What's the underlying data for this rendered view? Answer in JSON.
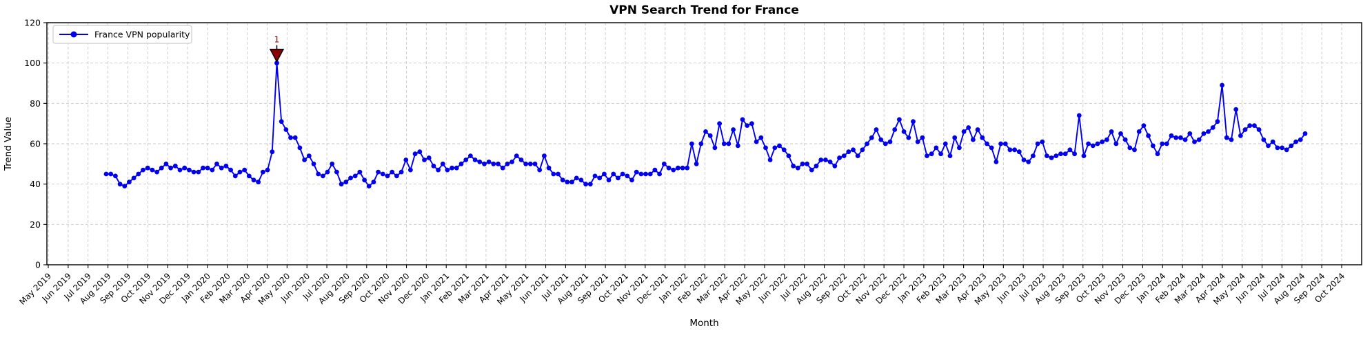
{
  "title": "VPN Search Trend for France",
  "axes": {
    "x_label": "Month",
    "y_label": "Trend Value"
  },
  "legend": {
    "label": "France VPN popularity",
    "position": "upper left"
  },
  "annotation": {
    "label": "1",
    "marker": "triangle-down",
    "color": "#8b0000",
    "at_value": 100
  },
  "colors": {
    "line": "#0000ee",
    "marker": "#0000ee",
    "annotation": "#8b0000",
    "grid": "#c9c9c9",
    "axis": "#000000",
    "background": "#ffffff",
    "legend_border": "#cccccc"
  },
  "chart_data": {
    "type": "line",
    "title": "VPN Search Trend for France",
    "xlabel": "Month",
    "ylabel": "Trend Value",
    "ylim": [
      0,
      120
    ],
    "grid": true,
    "grid_style": "dashed",
    "legend_position": "upper left",
    "y_ticks": [
      0,
      20,
      40,
      60,
      80,
      100,
      120
    ],
    "x_tick_labels": [
      "May 2019",
      "Jun 2019",
      "Jul 2019",
      "Aug 2019",
      "Sep 2019",
      "Oct 2019",
      "Nov 2019",
      "Dec 2019",
      "Jan 2020",
      "Feb 2020",
      "Mar 2020",
      "Apr 2020",
      "May 2020",
      "Jun 2020",
      "Jul 2020",
      "Aug 2020",
      "Sep 2020",
      "Oct 2020",
      "Nov 2020",
      "Dec 2020",
      "Jan 2021",
      "Feb 2021",
      "Mar 2021",
      "Apr 2021",
      "May 2021",
      "Jun 2021",
      "Jul 2021",
      "Aug 2021",
      "Sep 2021",
      "Oct 2021",
      "Nov 2021",
      "Dec 2021",
      "Jan 2022",
      "Feb 2022",
      "Mar 2022",
      "Apr 2022",
      "May 2022",
      "Jun 2022",
      "Jul 2022",
      "Aug 2022",
      "Sep 2022",
      "Oct 2022",
      "Nov 2022",
      "Dec 2022",
      "Jan 2023",
      "Feb 2023",
      "Mar 2023",
      "Apr 2023",
      "May 2023",
      "Jun 2023",
      "Jul 2023",
      "Aug 2023",
      "Sep 2023",
      "Oct 2023",
      "Nov 2023",
      "Dec 2023",
      "Jan 2024",
      "Feb 2024",
      "Mar 2024",
      "Apr 2024",
      "May 2024",
      "Jun 2024",
      "Jul 2024",
      "Aug 2024",
      "Sep 2024",
      "Oct 2024"
    ],
    "series": [
      {
        "name": "France VPN popularity",
        "color": "#0000ee",
        "frequency": "weekly",
        "first_point": "Aug 2019",
        "last_point": "Aug 2024",
        "values": [
          45,
          45,
          44,
          40,
          39,
          41,
          43,
          45,
          47,
          48,
          47,
          46,
          48,
          50,
          48,
          49,
          47,
          48,
          47,
          46,
          46,
          48,
          48,
          47,
          50,
          48,
          49,
          47,
          44,
          46,
          47,
          44,
          42,
          41,
          46,
          47,
          56,
          100,
          71,
          67,
          63,
          63,
          58,
          52,
          54,
          50,
          45,
          44,
          46,
          50,
          46,
          40,
          41,
          43,
          44,
          46,
          42,
          39,
          41,
          46,
          45,
          44,
          46,
          44,
          46,
          52,
          47,
          55,
          56,
          52,
          53,
          49,
          47,
          50,
          47,
          48,
          48,
          50,
          52,
          54,
          52,
          51,
          50,
          51,
          50,
          50,
          48,
          50,
          51,
          54,
          52,
          50,
          50,
          50,
          47,
          54,
          48,
          45,
          45,
          42,
          41,
          41,
          43,
          42,
          40,
          40,
          44,
          43,
          45,
          42,
          45,
          43,
          45,
          44,
          42,
          46,
          45,
          45,
          45,
          47,
          45,
          50,
          48,
          47,
          48,
          48,
          48,
          60,
          50,
          60,
          66,
          64,
          58,
          70,
          60,
          60,
          67,
          59,
          72,
          69,
          70,
          61,
          63,
          58,
          52,
          58,
          59,
          57,
          54,
          49,
          48,
          50,
          50,
          47,
          49,
          52,
          52,
          51,
          49,
          53,
          54,
          56,
          57,
          54,
          57,
          60,
          63,
          67,
          62,
          60,
          61,
          67,
          72,
          66,
          63,
          71,
          61,
          63,
          54,
          55,
          58,
          55,
          60,
          54,
          63,
          58,
          66,
          68,
          62,
          67,
          63,
          60,
          58,
          51,
          60,
          60,
          57,
          57,
          56,
          52,
          51,
          54,
          60,
          61,
          54,
          53,
          54,
          55,
          55,
          57,
          55,
          74,
          54,
          60,
          59,
          60,
          61,
          62,
          66,
          60,
          65,
          62,
          58,
          57,
          66,
          69,
          64,
          59,
          55,
          60,
          60,
          64,
          63,
          63,
          62,
          65,
          61,
          62,
          65,
          66,
          68,
          71,
          89,
          63,
          62,
          77,
          64,
          67,
          69,
          69,
          67,
          62,
          59,
          61,
          58,
          58,
          57,
          59,
          61,
          62,
          65
        ]
      }
    ],
    "annotations": [
      {
        "label": "1",
        "series": "France VPN popularity",
        "value": 100,
        "near_x": "Apr 2020",
        "marker": "triangle-down",
        "color": "#8b0000"
      }
    ]
  }
}
